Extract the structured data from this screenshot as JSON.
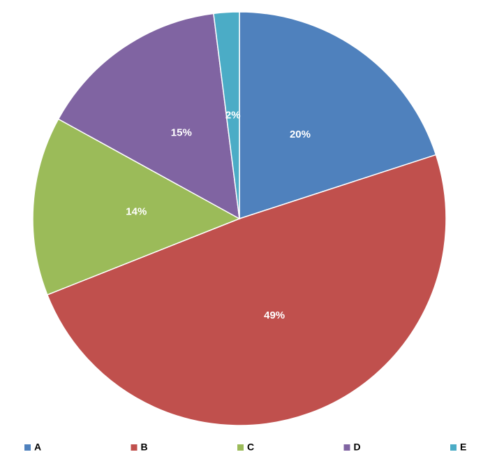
{
  "chart_data": {
    "type": "pie",
    "categories": [
      "A",
      "B",
      "C",
      "D",
      "E"
    ],
    "values": [
      20,
      49,
      14,
      15,
      2
    ],
    "value_labels": [
      "20%",
      "49%",
      "14%",
      "15%",
      "2%"
    ],
    "colors": [
      "#4f81bd",
      "#c0504d",
      "#9bbb59",
      "#8064a2",
      "#4bacc6"
    ],
    "legend": "bottom"
  }
}
